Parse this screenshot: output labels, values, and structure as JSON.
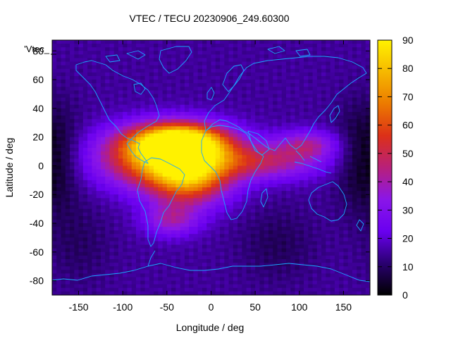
{
  "chart_data": {
    "type": "heatmap",
    "title": "VTEC / TECU 20230906_249.60300",
    "xlabel": "Longitude / deg",
    "ylabel": "Latitude / deg",
    "key_label": "'Vtec_",
    "xlim": [
      -180,
      180
    ],
    "ylim": [
      -90,
      87.5
    ],
    "xticks": [
      -150,
      -100,
      -50,
      0,
      50,
      100,
      150
    ],
    "yticks": [
      -80,
      -60,
      -40,
      -20,
      0,
      20,
      40,
      60,
      80
    ],
    "colorbar": {
      "range": [
        0,
        90
      ],
      "ticks": [
        0,
        10,
        20,
        30,
        40,
        50,
        60,
        70,
        80,
        90
      ],
      "palette": "black-purple-red-orange-yellow"
    },
    "grid": {
      "lon_step": 5,
      "lat_step": 2.5,
      "lon_min": -180,
      "lat_max": 87.5
    },
    "colors": {
      "coastline": "#1aa8ff",
      "palette_stops": [
        "#000000",
        "#2a0070",
        "#6a00f0",
        "#8a16e8",
        "#b8207a",
        "#dc3018",
        "#ec7a00",
        "#f6b800",
        "#fff200"
      ]
    },
    "features": {
      "background_vtec": 15,
      "dark_patches": [
        {
          "lon": -175,
          "lat": 5,
          "depth": 12,
          "sigma_lon": 20,
          "sigma_lat": 25
        },
        {
          "lon": -150,
          "lat": -55,
          "depth": 5,
          "sigma_lon": 25,
          "sigma_lat": 20
        },
        {
          "lon": 75,
          "lat": -55,
          "depth": 6,
          "sigma_lon": 30,
          "sigma_lat": 18
        },
        {
          "lon": 160,
          "lat": 5,
          "depth": 6,
          "sigma_lon": 18,
          "sigma_lat": 25
        }
      ],
      "equatorial_anomaly": [
        {
          "lon": -35,
          "lat": 17,
          "peak": 70,
          "sigma_lon": 38,
          "sigma_lat": 9
        },
        {
          "lon": -60,
          "lat": 5,
          "peak": 52,
          "sigma_lon": 48,
          "sigma_lat": 14
        },
        {
          "lon": -25,
          "lat": -8,
          "peak": 48,
          "sigma_lon": 32,
          "sigma_lat": 14
        },
        {
          "lon": 55,
          "lat": 3,
          "peak": 30,
          "sigma_lon": 50,
          "sigma_lat": 9
        },
        {
          "lon": 110,
          "lat": 15,
          "peak": 22,
          "sigma_lon": 25,
          "sigma_lat": 7
        },
        {
          "lon": -45,
          "lat": -38,
          "peak": 22,
          "sigma_lon": 22,
          "sigma_lat": 8
        }
      ]
    }
  }
}
